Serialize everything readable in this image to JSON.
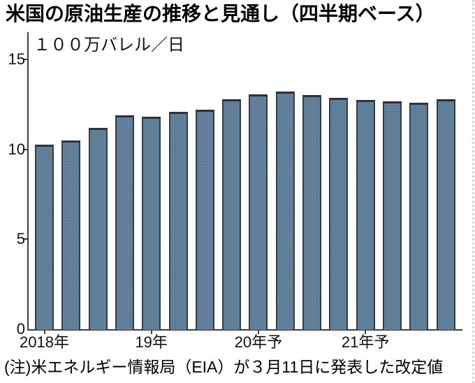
{
  "page": {
    "title": "米国の原油生産の推移と見通し（四半期ベース）",
    "note": "(注)米エネルギー情報局（EIA）が３月11日に発表した改定値"
  },
  "chart_data": {
    "type": "bar",
    "title": "米国の原油生産の推移と見通し（四半期ベース）",
    "unit_label": "１００万バレル／日",
    "xlabel": "",
    "ylabel": "１００万バレル／日",
    "ylim": [
      0,
      15
    ],
    "yticks": [
      0,
      5,
      10,
      15
    ],
    "grid": false,
    "legend": "none",
    "categories": [
      "2018Q1",
      "2018Q2",
      "2018Q3",
      "2018Q4",
      "2019Q1",
      "2019Q2",
      "2019Q3",
      "2019Q4",
      "2020Q1",
      "2020Q2",
      "2020Q3",
      "2020Q4",
      "2021Q1",
      "2021Q2",
      "2021Q3",
      "2021Q4"
    ],
    "values": [
      10.25,
      10.5,
      11.2,
      11.9,
      11.8,
      12.1,
      12.2,
      12.8,
      13.05,
      13.2,
      13.0,
      12.85,
      12.75,
      12.65,
      12.6,
      12.8
    ],
    "xtick_labels": [
      {
        "label": "2018年",
        "group_start_index": 0
      },
      {
        "label": "19年",
        "group_start_index": 4
      },
      {
        "label": "20年予",
        "group_start_index": 8
      },
      {
        "label": "21年予",
        "group_start_index": 12
      }
    ],
    "colors": {
      "bar_fill": "#5f7e99",
      "bar_border": "#343c44",
      "axis": "#3f3f3f",
      "text": "#000000",
      "page_edge_line": "#cfd5db"
    }
  }
}
